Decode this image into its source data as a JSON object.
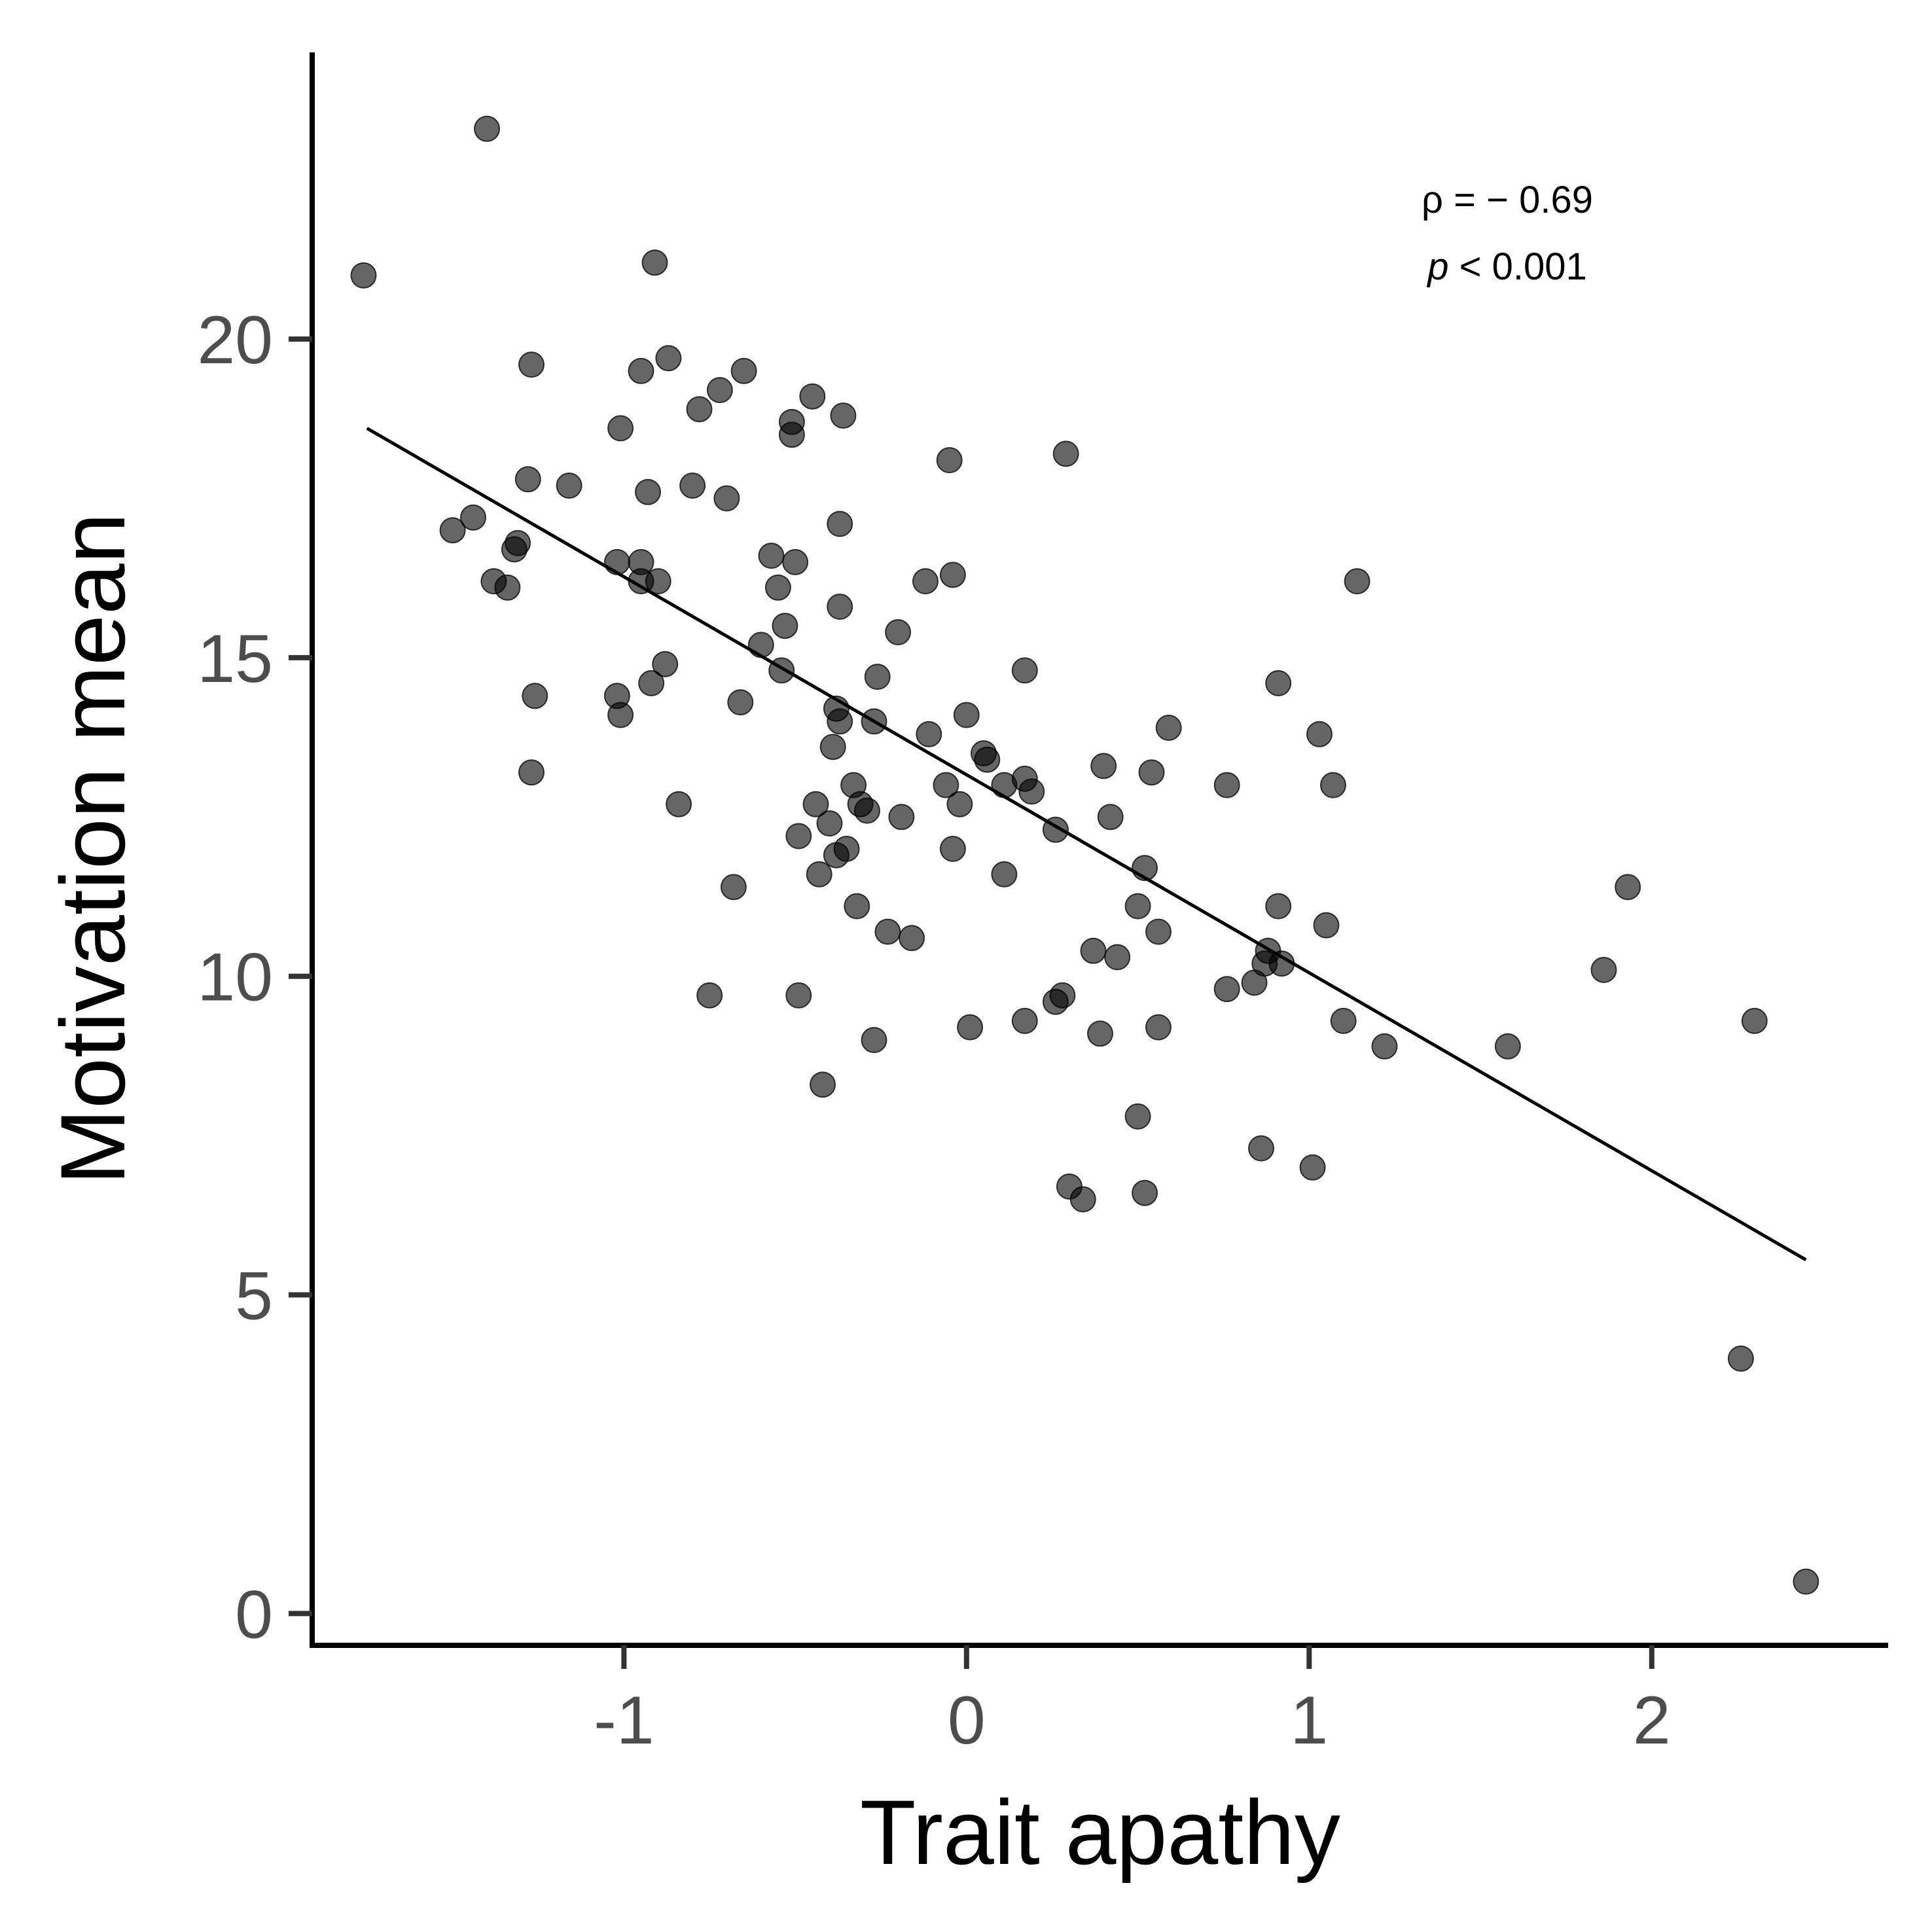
{
  "chart_data": {
    "type": "scatter",
    "xlabel": "Trait apathy",
    "ylabel": "Motivation mean",
    "xlim": [
      -1.91,
      2.69
    ],
    "ylim": [
      -0.5,
      24.5
    ],
    "x_ticks": [
      -1,
      0,
      1,
      2
    ],
    "x_tick_labels": [
      "-1",
      "0",
      "1",
      "2"
    ],
    "y_ticks": [
      0,
      5,
      10,
      15,
      20
    ],
    "y_tick_labels": [
      "0",
      "5",
      "10",
      "15",
      "20"
    ],
    "grid": false,
    "legend": "none",
    "annotation": {
      "rho_label": "ρ = − 0.69",
      "p_symbol": "p",
      "p_rest": " < 0.001"
    },
    "trend_line": {
      "x": [
        -1.75,
        2.45
      ],
      "y": [
        18.6,
        5.55
      ]
    },
    "points": [
      [
        -1.4,
        23.3
      ],
      [
        -1.76,
        21.0
      ],
      [
        -0.91,
        21.2
      ],
      [
        -0.87,
        19.7
      ],
      [
        -0.95,
        19.5
      ],
      [
        -1.27,
        19.6
      ],
      [
        -0.65,
        19.5
      ],
      [
        -0.72,
        19.2
      ],
      [
        -0.45,
        19.1
      ],
      [
        -0.78,
        18.9
      ],
      [
        -0.51,
        18.7
      ],
      [
        -0.51,
        18.5
      ],
      [
        -0.36,
        18.8
      ],
      [
        -1.01,
        18.6
      ],
      [
        0.29,
        18.2
      ],
      [
        -0.05,
        18.1
      ],
      [
        -1.28,
        17.8
      ],
      [
        -1.16,
        17.7
      ],
      [
        -0.93,
        17.6
      ],
      [
        -0.8,
        17.7
      ],
      [
        -0.7,
        17.5
      ],
      [
        -1.44,
        17.2
      ],
      [
        -1.5,
        17.0
      ],
      [
        -0.37,
        17.1
      ],
      [
        -1.31,
        16.8
      ],
      [
        -1.32,
        16.7
      ],
      [
        -1.02,
        16.5
      ],
      [
        -0.95,
        16.5
      ],
      [
        -0.57,
        16.6
      ],
      [
        -0.5,
        16.5
      ],
      [
        -1.38,
        16.2
      ],
      [
        -1.34,
        16.1
      ],
      [
        -0.95,
        16.2
      ],
      [
        -0.9,
        16.2
      ],
      [
        -0.55,
        16.1
      ],
      [
        -0.12,
        16.2
      ],
      [
        -0.04,
        16.3
      ],
      [
        1.14,
        16.2
      ],
      [
        -0.37,
        15.8
      ],
      [
        -0.53,
        15.5
      ],
      [
        -0.2,
        15.4
      ],
      [
        -0.6,
        15.2
      ],
      [
        -0.88,
        14.9
      ],
      [
        -0.54,
        14.8
      ],
      [
        -0.26,
        14.7
      ],
      [
        0.17,
        14.8
      ],
      [
        -0.92,
        14.6
      ],
      [
        -1.26,
        14.4
      ],
      [
        -1.02,
        14.4
      ],
      [
        -0.66,
        14.3
      ],
      [
        -0.38,
        14.2
      ],
      [
        -1.01,
        14.1
      ],
      [
        -0.37,
        14.0
      ],
      [
        -0.27,
        14.0
      ],
      [
        0.0,
        14.1
      ],
      [
        0.59,
        13.9
      ],
      [
        0.91,
        14.6
      ],
      [
        -0.11,
        13.8
      ],
      [
        1.03,
        13.8
      ],
      [
        -0.39,
        13.6
      ],
      [
        0.05,
        13.5
      ],
      [
        0.06,
        13.4
      ],
      [
        0.4,
        13.3
      ],
      [
        0.54,
        13.2
      ],
      [
        -1.27,
        13.2
      ],
      [
        0.17,
        13.1
      ],
      [
        -0.33,
        13.0
      ],
      [
        0.11,
        13.0
      ],
      [
        -0.06,
        13.0
      ],
      [
        0.76,
        13.0
      ],
      [
        1.07,
        13.0
      ],
      [
        0.19,
        12.9
      ],
      [
        -0.31,
        12.7
      ],
      [
        -0.44,
        12.7
      ],
      [
        -0.84,
        12.7
      ],
      [
        -0.02,
        12.7
      ],
      [
        -0.29,
        12.6
      ],
      [
        -0.19,
        12.5
      ],
      [
        0.42,
        12.5
      ],
      [
        -0.4,
        12.4
      ],
      [
        0.26,
        12.3
      ],
      [
        -0.49,
        12.2
      ],
      [
        -0.35,
        12.0
      ],
      [
        -0.38,
        11.9
      ],
      [
        -0.04,
        12.0
      ],
      [
        0.52,
        11.7
      ],
      [
        -0.43,
        11.6
      ],
      [
        0.11,
        11.6
      ],
      [
        -0.68,
        11.4
      ],
      [
        1.93,
        11.4
      ],
      [
        -0.32,
        11.1
      ],
      [
        0.5,
        11.1
      ],
      [
        0.91,
        11.1
      ],
      [
        1.05,
        10.8
      ],
      [
        -0.23,
        10.7
      ],
      [
        -0.16,
        10.6
      ],
      [
        0.56,
        10.7
      ],
      [
        0.37,
        10.4
      ],
      [
        0.44,
        10.3
      ],
      [
        0.88,
        10.4
      ],
      [
        0.87,
        10.2
      ],
      [
        0.92,
        10.2
      ],
      [
        1.86,
        10.1
      ],
      [
        0.84,
        9.9
      ],
      [
        0.76,
        9.8
      ],
      [
        -0.75,
        9.7
      ],
      [
        -0.49,
        9.7
      ],
      [
        0.26,
        9.6
      ],
      [
        0.28,
        9.7
      ],
      [
        0.17,
        9.3
      ],
      [
        0.01,
        9.2
      ],
      [
        0.39,
        9.1
      ],
      [
        0.56,
        9.2
      ],
      [
        1.1,
        9.3
      ],
      [
        2.3,
        9.3
      ],
      [
        -0.27,
        9.0
      ],
      [
        1.22,
        8.9
      ],
      [
        1.58,
        8.9
      ],
      [
        -0.42,
        8.3
      ],
      [
        0.5,
        7.8
      ],
      [
        0.86,
        7.3
      ],
      [
        1.01,
        7.0
      ],
      [
        0.3,
        6.7
      ],
      [
        0.34,
        6.5
      ],
      [
        0.52,
        6.6
      ],
      [
        2.26,
        4.0
      ],
      [
        2.45,
        0.5
      ]
    ]
  }
}
